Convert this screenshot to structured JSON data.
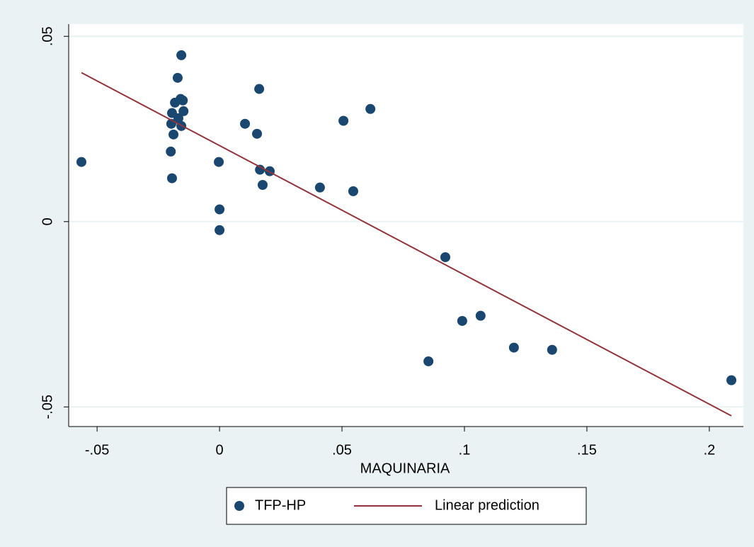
{
  "chart_data": {
    "type": "scatter",
    "x_label": "MAQUINARIA",
    "xlim": [
      -0.0616,
      0.2139
    ],
    "ylim": [
      -0.0553,
      0.0533
    ],
    "xticks": [
      {
        "value": -0.05,
        "label": "-.05"
      },
      0,
      {
        "value": 0.05,
        "label": ".05"
      },
      {
        "value": 0.1,
        "label": ".1"
      },
      {
        "value": 0.15,
        "label": ".15"
      },
      {
        "value": 0.2,
        "label": ".2"
      }
    ],
    "yticks": [
      {
        "value": -0.05,
        "label": "-.05"
      },
      0,
      {
        "value": 0.05,
        "label": ".05"
      }
    ],
    "grid": true,
    "legend": "bottom",
    "series": [
      {
        "name": "TFP-HP",
        "type": "scatter",
        "color": "#1a476f",
        "x": [
          -0.0564,
          -0.0156,
          -0.0171,
          -0.0159,
          -0.015,
          -0.0182,
          -0.0147,
          -0.0194,
          -0.0168,
          -0.0197,
          -0.0156,
          -0.0188,
          -0.0199,
          -0.0194,
          -0.0003,
          0,
          0,
          0.0162,
          0.0104,
          0.0153,
          0.0165,
          0.0205,
          0.0176,
          0.041,
          0.0506,
          0.0616,
          0.0546,
          0.0922,
          0.0853,
          0.0991,
          0.1066,
          0.1202,
          0.1358,
          0.209
        ],
        "values": [
          0.0161,
          0.0449,
          0.0388,
          0.0331,
          0.0327,
          0.0321,
          0.0298,
          0.0293,
          0.0279,
          0.0264,
          0.0258,
          0.0235,
          0.0189,
          0.0117,
          0.0161,
          0.0033,
          -0.0023,
          0.0358,
          0.0264,
          0.0237,
          0.014,
          0.0136,
          0.0099,
          0.0092,
          0.0272,
          0.0304,
          0.0082,
          -0.0096,
          -0.0377,
          -0.0268,
          -0.0254,
          -0.034,
          -0.0346,
          -0.0428
        ]
      },
      {
        "name": "Linear prediction",
        "type": "line",
        "color": "#90353b",
        "x": [
          -0.0564,
          0.209
        ],
        "values": [
          0.0402,
          -0.0524
        ]
      }
    ]
  }
}
